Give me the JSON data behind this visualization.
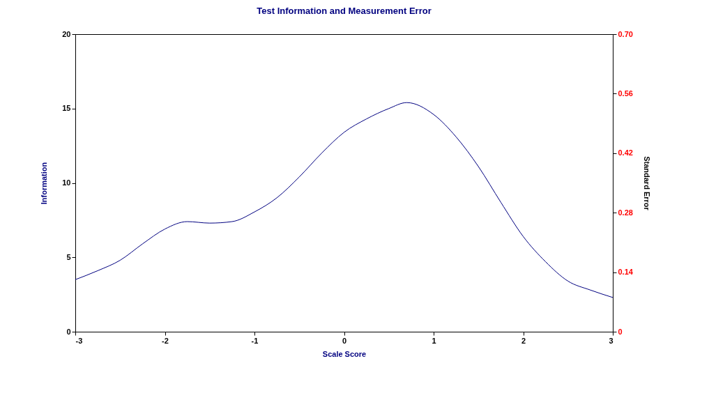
{
  "chart_data": {
    "type": "line",
    "title": "Test Information and Measurement Error",
    "xlabel": "Scale Score",
    "ylabel": "Information",
    "y2label": "Standard Error",
    "series": [
      {
        "color": "#000080",
        "x": [
          -3,
          -2.75,
          -2.5,
          -2.25,
          -2,
          -1.75,
          -1.5,
          -1.25,
          -1,
          -0.75,
          -0.5,
          -0.25,
          0,
          0.25,
          0.5,
          0.7,
          1,
          1.25,
          1.5,
          1.75,
          2,
          2.25,
          2.5,
          2.75,
          3
        ],
        "values": [
          3.5,
          4.1,
          4.8,
          5.9,
          6.9,
          7.4,
          7.3,
          7.4,
          8.05,
          9.0,
          10.4,
          12.0,
          13.4,
          14.3,
          15.0,
          15.4,
          14.6,
          13.1,
          11.1,
          8.7,
          6.4,
          4.7,
          3.4,
          2.8,
          2.3
        ]
      }
    ],
    "xlim": [
      -3,
      3
    ],
    "xticks": [
      -3,
      -2,
      -1,
      0,
      1,
      2,
      3
    ],
    "ylim": [
      0,
      20
    ],
    "yticks": [
      0,
      5,
      10,
      15,
      20
    ],
    "y2lim": [
      0,
      0.7
    ],
    "y2ticks": [
      0,
      {
        "value": 0.14,
        "label": "0.14"
      },
      {
        "value": 0.28,
        "label": "0.28"
      },
      {
        "value": 0.42,
        "label": "0.42"
      },
      {
        "value": 0.56,
        "label": "0.56"
      },
      {
        "value": 0.7,
        "label": "0.70"
      }
    ],
    "grid": false,
    "marker": "none",
    "line_style": "solid"
  }
}
